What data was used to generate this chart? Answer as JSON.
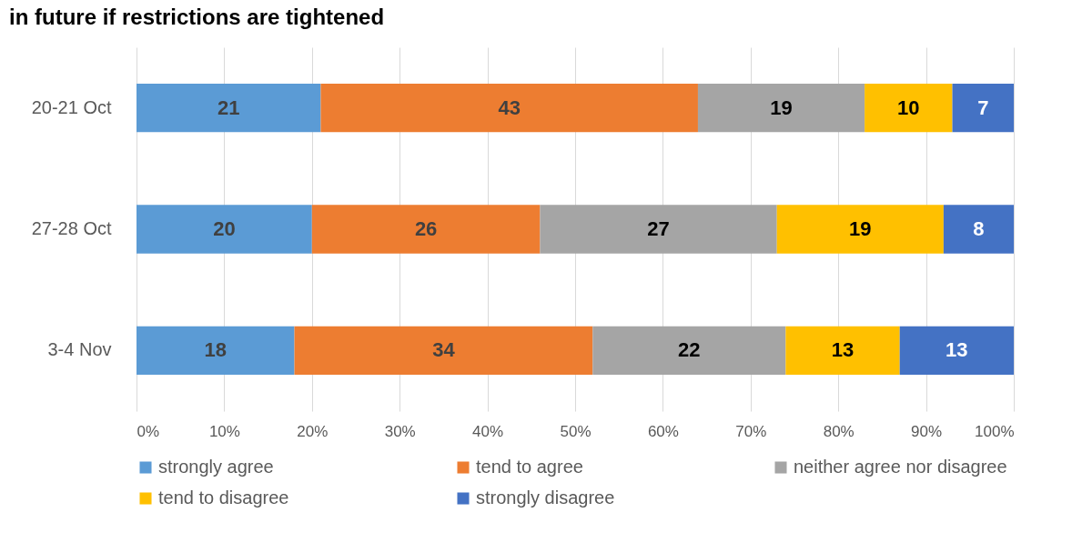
{
  "chart_data": {
    "type": "bar",
    "orientation": "horizontal",
    "stacked": true,
    "title": "in future if restrictions are tightened",
    "categories": [
      "20-21 Oct",
      "27-28 Oct",
      "3-4 Nov"
    ],
    "series": [
      {
        "name": "strongly agree",
        "color": "#5b9bd5",
        "values": [
          21,
          20,
          18
        ]
      },
      {
        "name": "tend to agree",
        "color": "#ed7d31",
        "values": [
          43,
          26,
          34
        ]
      },
      {
        "name": "neither agree nor disagree",
        "color": "#a5a5a5",
        "values": [
          19,
          27,
          22
        ]
      },
      {
        "name": "tend to disagree",
        "color": "#ffc000",
        "values": [
          10,
          19,
          13
        ]
      },
      {
        "name": "strongly disagree",
        "color": "#4472c4",
        "values": [
          7,
          8,
          13
        ]
      }
    ],
    "xlim": [
      0,
      100
    ],
    "xticks": [
      {
        "value": 0,
        "label": "0%"
      },
      {
        "value": 10,
        "label": "10%"
      },
      {
        "value": 20,
        "label": "20%"
      },
      {
        "value": 30,
        "label": "30%"
      },
      {
        "value": 40,
        "label": "40%"
      },
      {
        "value": 50,
        "label": "50%"
      },
      {
        "value": 60,
        "label": "60%"
      },
      {
        "value": 70,
        "label": "70%"
      },
      {
        "value": 80,
        "label": "80%"
      },
      {
        "value": 90,
        "label": "90%"
      },
      {
        "value": 100,
        "label": "100%"
      }
    ],
    "grid": "x",
    "legend": "bottom",
    "data_labels": true
  }
}
